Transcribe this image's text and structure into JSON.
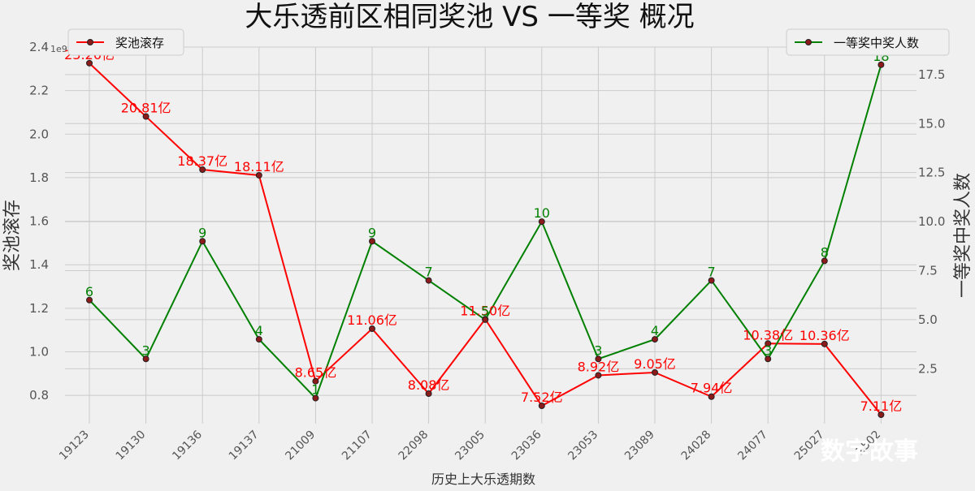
{
  "title": "大乐透前区相同奖池 VS 一等奖 概况",
  "watermark": "数字故事",
  "chart_data": {
    "type": "line",
    "title": "大乐透前区相同奖池 VS 一等奖 概况",
    "xlabel": "历史上大乐透期数",
    "categories": [
      "19123",
      "19130",
      "19136",
      "19137",
      "21009",
      "21107",
      "22098",
      "23005",
      "23036",
      "23053",
      "23089",
      "24028",
      "24077",
      "25027",
      "2502"
    ],
    "left_axis": {
      "label": "奖池滚存",
      "offset_text": "1e9",
      "ylim": [
        0.67,
        2.4
      ],
      "ticks": [
        0.8,
        1.0,
        1.2,
        1.4,
        1.6,
        1.8,
        2.0,
        2.2,
        2.4
      ],
      "tick_labels": [
        "0.8",
        "1.0",
        "1.2",
        "1.4",
        "1.6",
        "1.8",
        "2.0",
        "2.2",
        "2.4"
      ]
    },
    "right_axis": {
      "label": "一等奖中奖人数",
      "ylim": [
        -0.3,
        18.9
      ],
      "ticks": [
        2.5,
        5.0,
        7.5,
        10.0,
        12.5,
        15.0,
        17.5
      ],
      "tick_labels": [
        "2.5",
        "5.0",
        "7.5",
        "10.0",
        "12.5",
        "15.0",
        "17.5"
      ]
    },
    "series": [
      {
        "name": "奖池滚存",
        "axis": "left",
        "color": "#ff0000",
        "values": [
          2.326,
          2.081,
          1.837,
          1.811,
          0.865,
          1.106,
          0.808,
          1.15,
          0.752,
          0.892,
          0.905,
          0.794,
          1.038,
          1.036,
          0.711
        ],
        "labels": [
          "23.26亿",
          "20.81亿",
          "18.37亿",
          "18.11亿",
          "8.65亿",
          "11.06亿",
          "8.08亿",
          "11.50亿",
          "7.52亿",
          "8.92亿",
          "9.05亿",
          "7.94亿",
          "10.38亿",
          "10.36亿",
          "7.11亿"
        ]
      },
      {
        "name": "一等奖中奖人数",
        "axis": "right",
        "color": "#008000",
        "values": [
          6,
          3,
          9,
          4,
          1,
          9,
          7,
          5,
          10,
          3,
          4,
          7,
          3,
          8,
          18
        ],
        "labels": [
          "6",
          "3",
          "9",
          "4",
          "1",
          "9",
          "7",
          "5",
          "10",
          "3",
          "4",
          "7",
          "3",
          "8",
          "18"
        ]
      }
    ],
    "legend_left": "top-left",
    "legend_right": "top-right",
    "grid": true
  }
}
